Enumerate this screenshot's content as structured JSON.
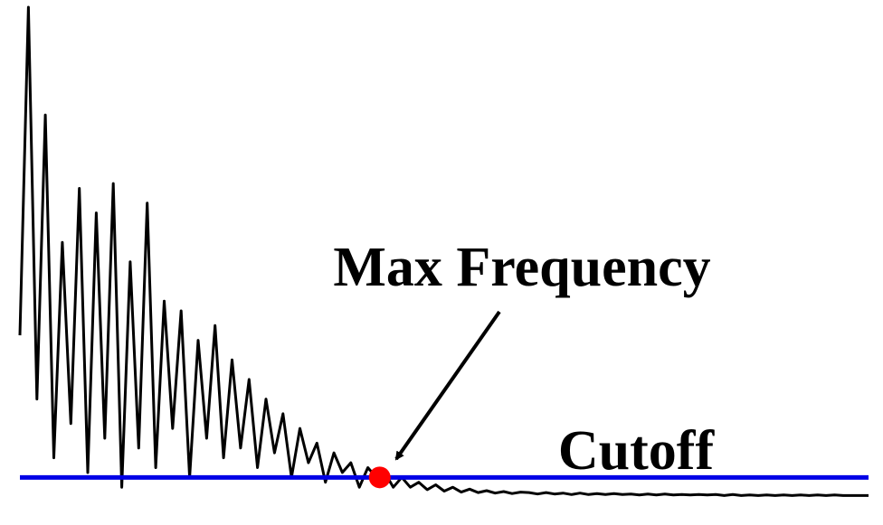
{
  "chart_data": {
    "type": "line",
    "annotations": {
      "max_frequency": "Max Frequency",
      "cutoff": "Cutoff"
    },
    "x": [
      0,
      1,
      2,
      3,
      4,
      5,
      6,
      7,
      8,
      9,
      10,
      11,
      12,
      13,
      14,
      15,
      16,
      17,
      18,
      19,
      20,
      21,
      22,
      23,
      24,
      25,
      26,
      27,
      28,
      29,
      30,
      31,
      32,
      33,
      34,
      35,
      36,
      37,
      38,
      39,
      40,
      41,
      42,
      43,
      44,
      45,
      46,
      47,
      48,
      49,
      50,
      51,
      52,
      53,
      54,
      55,
      56,
      57,
      58,
      59,
      60,
      61,
      62,
      63,
      64,
      65,
      66,
      67,
      68,
      69,
      70,
      71,
      72,
      73,
      74,
      75,
      76,
      77,
      78,
      79,
      80,
      81,
      82,
      83,
      84,
      85,
      86,
      87,
      88,
      89,
      90,
      91,
      92,
      93,
      94,
      95,
      96,
      97,
      98,
      99,
      100
    ],
    "series": [
      {
        "color": "#000000",
        "values": [
          33,
          100,
          20,
          78,
          8,
          52,
          15,
          63,
          5,
          58,
          12,
          64,
          2,
          48,
          10,
          60,
          6,
          40,
          14,
          38,
          4,
          32,
          12,
          35,
          8,
          28,
          10,
          24,
          6,
          20,
          9,
          17,
          4,
          14,
          7,
          11,
          3,
          9,
          5,
          7,
          2,
          6,
          4,
          5,
          2,
          4,
          2,
          3,
          1.5,
          2.5,
          1.2,
          2,
          1,
          1.6,
          0.9,
          1.3,
          0.8,
          1.1,
          0.7,
          1,
          0.9,
          0.6,
          0.9,
          0.6,
          0.8,
          0.5,
          0.8,
          0.5,
          0.7,
          0.5,
          0.7,
          0.5,
          0.6,
          0.4,
          0.6,
          0.4,
          0.6,
          0.4,
          0.5,
          0.4,
          0.5,
          0.4,
          0.5,
          0.3,
          0.5,
          0.3,
          0.4,
          0.3,
          0.4,
          0.3,
          0.4,
          0.3,
          0.4,
          0.3,
          0.4,
          0.3,
          0.4,
          0.3,
          0.3,
          0.3,
          0.3
        ]
      }
    ],
    "cutoff": {
      "value": 4,
      "color": "#0000e6"
    },
    "max_frequency_point": {
      "x": 42.4,
      "color": "#ff0000"
    },
    "xlim": [
      0,
      100
    ],
    "ylim": [
      0,
      100
    ]
  }
}
